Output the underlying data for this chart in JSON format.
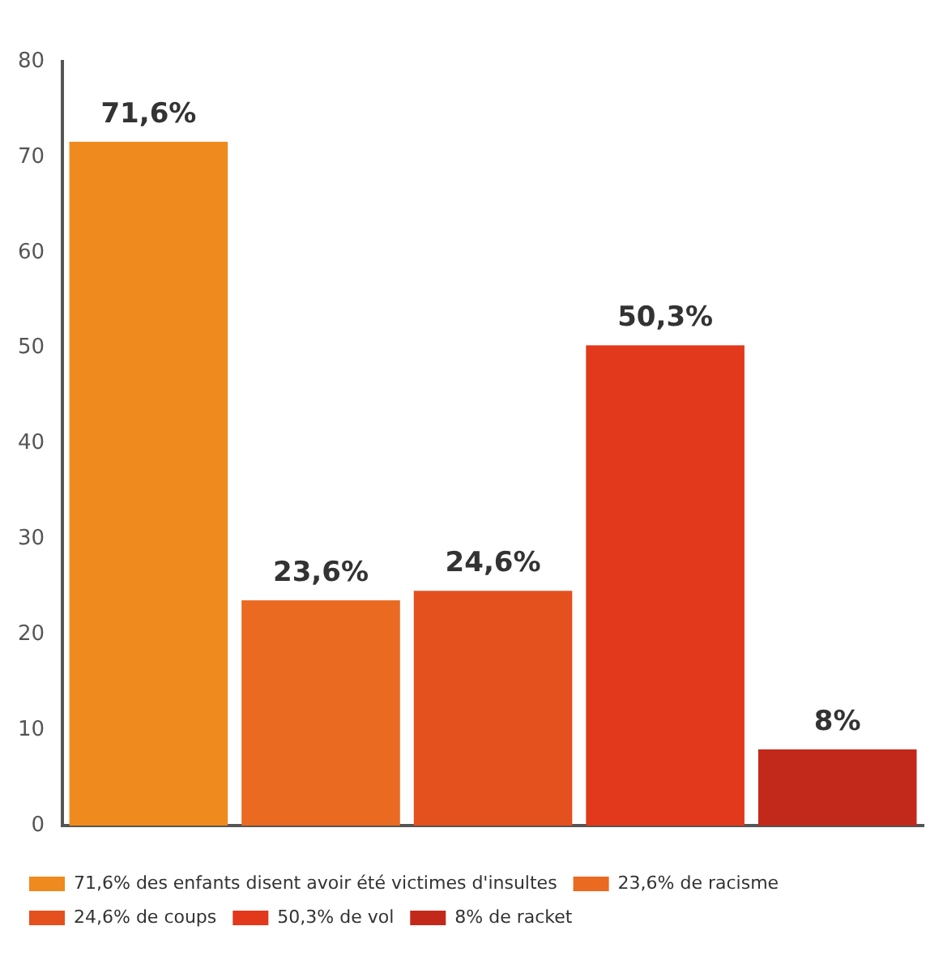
{
  "chart_data": {
    "type": "bar",
    "categories": [
      null,
      null,
      null,
      null,
      null
    ],
    "series": [
      {
        "name": "71,6% des enfants disent avoir été victimes d'insultes",
        "color": "#ef8a1e",
        "values": [
          71.6,
          null,
          null,
          null,
          null
        ],
        "value_labels": [
          "71,6%",
          null,
          null,
          null,
          null
        ]
      },
      {
        "name": "23,6% de racisme",
        "color": "#e96a20",
        "values": [
          null,
          23.6,
          null,
          null,
          null
        ],
        "value_labels": [
          null,
          "23,6%",
          null,
          null,
          null
        ]
      },
      {
        "name": "24,6% de coups",
        "color": "#e5501f",
        "values": [
          null,
          null,
          24.6,
          null,
          null
        ],
        "value_labels": [
          null,
          null,
          "24,6%",
          null,
          null
        ]
      },
      {
        "name": "50,3% de vol",
        "color": "#e2381b",
        "values": [
          null,
          null,
          null,
          50.3,
          null
        ],
        "value_labels": [
          null,
          null,
          null,
          "50,3%",
          null
        ]
      },
      {
        "name": "8% de racket",
        "color": "#c2291b",
        "values": [
          null,
          null,
          null,
          null,
          8
        ],
        "value_labels": [
          null,
          null,
          null,
          null,
          "8%"
        ]
      }
    ],
    "ylim": [
      0,
      80
    ],
    "yticks": [
      0,
      10,
      20,
      30,
      40,
      50,
      60,
      70,
      80
    ],
    "grid": false,
    "legend": "bottom"
  }
}
